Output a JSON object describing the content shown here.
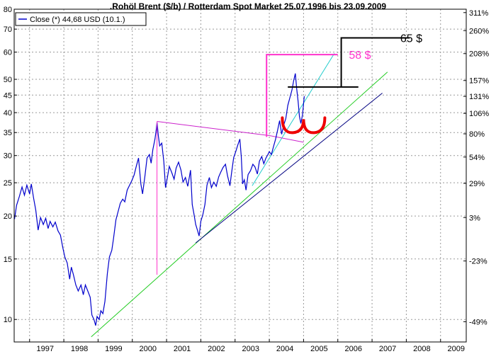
{
  "chart_data": {
    "type": "line",
    "title": ".Rohöl Brent ($/b) / Rotterdam Spot Market 25.07.1996 bis 23.09.2009",
    "legend": {
      "label": "Close (*) 44,68 USD (10.1.)",
      "placement": "top-left"
    },
    "scale": "log",
    "grid": true,
    "x_range": [
      1996.55,
      2009.75
    ],
    "y_range": [
      8.6,
      80
    ],
    "y_ticks": [
      {
        "value": 10,
        "label": "10"
      },
      {
        "value": 15,
        "label": "15"
      },
      {
        "value": 20,
        "label": "20"
      },
      {
        "value": 25,
        "label": "25"
      },
      {
        "value": 30,
        "label": "30"
      },
      {
        "value": 35,
        "label": "35"
      },
      {
        "value": 40,
        "label": "40"
      },
      {
        "value": 45,
        "label": "45"
      },
      {
        "value": 50,
        "label": "50"
      },
      {
        "value": 60,
        "label": "60"
      },
      {
        "value": 70,
        "label": "70"
      },
      {
        "value": 80,
        "label": "80"
      }
    ],
    "pct_ticks": [
      {
        "value": 78.2,
        "label": "311%"
      },
      {
        "value": 69.3,
        "label": "260%"
      },
      {
        "value": 59.4,
        "label": "208%"
      },
      {
        "value": 49.6,
        "label": "157%"
      },
      {
        "value": 44.6,
        "label": "131%"
      },
      {
        "value": 39.8,
        "label": "106%"
      },
      {
        "value": 34.7,
        "label": "80%"
      },
      {
        "value": 29.7,
        "label": "54%"
      },
      {
        "value": 24.9,
        "label": "29%"
      },
      {
        "value": 19.8,
        "label": "3%"
      },
      {
        "value": 14.8,
        "label": "-23%"
      },
      {
        "value": 9.85,
        "label": "-49%"
      }
    ],
    "x_ticks": [
      {
        "value": 1997,
        "label": "1997"
      },
      {
        "value": 1998,
        "label": "1998"
      },
      {
        "value": 1999,
        "label": "1999"
      },
      {
        "value": 2000,
        "label": "2000"
      },
      {
        "value": 2001,
        "label": "2001"
      },
      {
        "value": 2002,
        "label": "2002"
      },
      {
        "value": 2003,
        "label": "2003"
      },
      {
        "value": 2004,
        "label": "2004"
      },
      {
        "value": 2005,
        "label": "2005"
      },
      {
        "value": 2006,
        "label": "2006"
      },
      {
        "value": 2007,
        "label": "2007"
      },
      {
        "value": 2008,
        "label": "2008"
      },
      {
        "value": 2009,
        "label": "2009"
      }
    ],
    "series": [
      {
        "color": "#0000cc",
        "points": [
          [
            1996.56,
            19.6
          ],
          [
            1996.62,
            21.5
          ],
          [
            1996.7,
            22.8
          ],
          [
            1996.78,
            24.3
          ],
          [
            1996.85,
            23.0
          ],
          [
            1996.92,
            24.6
          ],
          [
            1997.0,
            23.2
          ],
          [
            1997.05,
            24.8
          ],
          [
            1997.12,
            22.5
          ],
          [
            1997.18,
            20.8
          ],
          [
            1997.25,
            18.2
          ],
          [
            1997.32,
            19.8
          ],
          [
            1997.4,
            18.9
          ],
          [
            1997.47,
            19.7
          ],
          [
            1997.54,
            18.4
          ],
          [
            1997.6,
            19.3
          ],
          [
            1997.68,
            18.6
          ],
          [
            1997.75,
            19.2
          ],
          [
            1997.83,
            18.1
          ],
          [
            1997.9,
            17.6
          ],
          [
            1997.97,
            16.2
          ],
          [
            1998.03,
            15.2
          ],
          [
            1998.1,
            14.6
          ],
          [
            1998.17,
            13.1
          ],
          [
            1998.22,
            14.2
          ],
          [
            1998.28,
            13.5
          ],
          [
            1998.35,
            12.6
          ],
          [
            1998.42,
            12.1
          ],
          [
            1998.5,
            12.6
          ],
          [
            1998.57,
            11.8
          ],
          [
            1998.63,
            12.6
          ],
          [
            1998.7,
            12.1
          ],
          [
            1998.77,
            11.6
          ],
          [
            1998.82,
            10.3
          ],
          [
            1998.88,
            10.0
          ],
          [
            1998.93,
            9.6
          ],
          [
            1998.97,
            10.2
          ],
          [
            1999.03,
            10.0
          ],
          [
            1999.08,
            10.6
          ],
          [
            1999.14,
            10.4
          ],
          [
            1999.2,
            11.3
          ],
          [
            1999.27,
            13.6
          ],
          [
            1999.33,
            15.2
          ],
          [
            1999.4,
            15.9
          ],
          [
            1999.45,
            17.2
          ],
          [
            1999.52,
            19.5
          ],
          [
            1999.58,
            20.5
          ],
          [
            1999.65,
            21.8
          ],
          [
            1999.72,
            22.4
          ],
          [
            1999.78,
            22.0
          ],
          [
            1999.85,
            23.8
          ],
          [
            1999.92,
            24.6
          ],
          [
            1999.98,
            25.3
          ],
          [
            2000.05,
            26.3
          ],
          [
            2000.12,
            28.0
          ],
          [
            2000.18,
            29.5
          ],
          [
            2000.25,
            24.8
          ],
          [
            2000.3,
            23.2
          ],
          [
            2000.37,
            26.2
          ],
          [
            2000.43,
            29.5
          ],
          [
            2000.5,
            30.2
          ],
          [
            2000.55,
            28.5
          ],
          [
            2000.6,
            31.2
          ],
          [
            2000.66,
            33.5
          ],
          [
            2000.7,
            35.8
          ],
          [
            2000.72,
            37.5
          ],
          [
            2000.76,
            34.2
          ],
          [
            2000.8,
            32.0
          ],
          [
            2000.86,
            32.6
          ],
          [
            2000.92,
            28.8
          ],
          [
            2000.97,
            24.2
          ],
          [
            2001.02,
            25.8
          ],
          [
            2001.08,
            27.9
          ],
          [
            2001.15,
            26.8
          ],
          [
            2001.22,
            25.6
          ],
          [
            2001.28,
            27.6
          ],
          [
            2001.35,
            28.7
          ],
          [
            2001.42,
            27.2
          ],
          [
            2001.48,
            25.1
          ],
          [
            2001.55,
            25.9
          ],
          [
            2001.62,
            24.4
          ],
          [
            2001.7,
            27.2
          ],
          [
            2001.75,
            21.6
          ],
          [
            2001.8,
            20.3
          ],
          [
            2001.85,
            18.9
          ],
          [
            2001.9,
            18.2
          ],
          [
            2001.95,
            17.5
          ],
          [
            2002.0,
            19.3
          ],
          [
            2002.06,
            20.2
          ],
          [
            2002.12,
            21.6
          ],
          [
            2002.18,
            24.6
          ],
          [
            2002.25,
            25.9
          ],
          [
            2002.31,
            24.2
          ],
          [
            2002.38,
            25.1
          ],
          [
            2002.45,
            24.4
          ],
          [
            2002.52,
            26.0
          ],
          [
            2002.58,
            26.8
          ],
          [
            2002.65,
            27.7
          ],
          [
            2002.72,
            28.3
          ],
          [
            2002.78,
            26.2
          ],
          [
            2002.85,
            24.5
          ],
          [
            2002.9,
            26.8
          ],
          [
            2002.96,
            29.6
          ],
          [
            2003.02,
            30.8
          ],
          [
            2003.08,
            32.2
          ],
          [
            2003.14,
            33.5
          ],
          [
            2003.18,
            29.8
          ],
          [
            2003.22,
            24.8
          ],
          [
            2003.27,
            25.5
          ],
          [
            2003.32,
            23.8
          ],
          [
            2003.38,
            26.4
          ],
          [
            2003.45,
            27.1
          ],
          [
            2003.52,
            28.3
          ],
          [
            2003.58,
            27.8
          ],
          [
            2003.65,
            26.5
          ],
          [
            2003.71,
            28.9
          ],
          [
            2003.78,
            29.8
          ],
          [
            2003.84,
            28.4
          ],
          [
            2003.9,
            29.5
          ],
          [
            2003.95,
            30.1
          ],
          [
            2004.0,
            30.8
          ],
          [
            2004.06,
            30.2
          ],
          [
            2004.12,
            31.8
          ],
          [
            2004.18,
            33.4
          ],
          [
            2004.24,
            35.5
          ],
          [
            2004.3,
            37.9
          ],
          [
            2004.36,
            34.6
          ],
          [
            2004.42,
            36.8
          ],
          [
            2004.48,
            38.4
          ],
          [
            2004.54,
            42.0
          ],
          [
            2004.6,
            44.2
          ],
          [
            2004.66,
            46.5
          ],
          [
            2004.71,
            49.5
          ],
          [
            2004.76,
            52.0
          ],
          [
            2004.8,
            47.0
          ],
          [
            2004.84,
            43.2
          ],
          [
            2004.88,
            39.0
          ],
          [
            2004.92,
            37.2
          ],
          [
            2004.97,
            39.5
          ],
          [
            2005.02,
            44.68
          ]
        ]
      }
    ],
    "trendlines": [
      {
        "color": "#22cc22",
        "points": [
          [
            1998.8,
            8.9
          ],
          [
            2007.45,
            52.5
          ]
        ]
      },
      {
        "color": "#000080",
        "points": [
          [
            2001.85,
            16.7
          ],
          [
            2007.3,
            45.6
          ]
        ]
      },
      {
        "color": "#22cccc",
        "points": [
          [
            2003.5,
            24.5
          ],
          [
            2005.9,
            59.5
          ]
        ]
      },
      {
        "color": "#cc22cc",
        "points": [
          [
            2000.72,
            37.7
          ],
          [
            2004.0,
            34.3
          ],
          [
            2005.0,
            32.8
          ]
        ]
      }
    ],
    "annotations": [
      {
        "text": "58 $",
        "color": "#ff33cc",
        "bracket": [
          [
            2000.72,
            13.5
          ],
          [
            2000.72,
            37.7
          ]
        ],
        "extra_line": [
          [
            2003.92,
            34.0
          ],
          [
            2003.92,
            59.0
          ],
          [
            2006.0,
            59.0
          ]
        ],
        "label_at": [
          2006.2,
          59.0
        ]
      },
      {
        "text": "65 $",
        "color": "#000000",
        "lines": [
          [
            [
              2004.54,
              47.5
            ],
            [
              2006.6,
              47.5
            ]
          ],
          [
            [
              2006.1,
              47.5
            ],
            [
              2006.1,
              66.0
            ],
            [
              2008.1,
              66.0
            ]
          ]
        ],
        "label_at": [
          2007.7,
          66.0
        ]
      }
    ],
    "w_pattern": {
      "color": "#ee0000",
      "center_x": 2005.0,
      "y": 37.2
    }
  }
}
